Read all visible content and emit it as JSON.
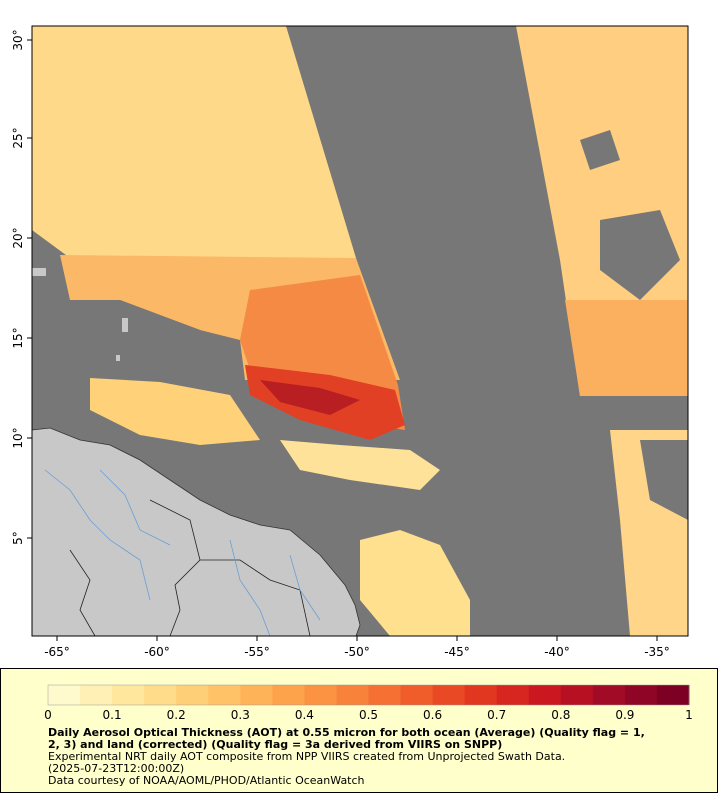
{
  "map": {
    "lon_ticks": [
      "-65°",
      "-60°",
      "-55°",
      "-50°",
      "-45°",
      "-40°",
      "-35°"
    ],
    "lat_ticks": [
      "30°",
      "25°",
      "20°",
      "15°",
      "10°",
      "5°"
    ],
    "colors": {
      "no_data": "#777777",
      "land": "#c8c8c8",
      "river": "#6a9fd4",
      "border": "#222222"
    }
  },
  "colorbar": {
    "tick_labels": [
      "0",
      "0.1",
      "0.2",
      "0.3",
      "0.4",
      "0.5",
      "0.6",
      "0.7",
      "0.8",
      "0.9",
      "1"
    ],
    "colors": [
      "#fffacd",
      "#ffe9a0",
      "#ffd27a",
      "#ffb85c",
      "#fc9a45",
      "#f77a36",
      "#ee5427",
      "#df301e",
      "#c81420",
      "#a00a25",
      "#7d0024"
    ]
  },
  "caption": {
    "title_line1": "Daily Aerosol Optical Thickness (AOT) at 0.55 micron for both ocean (Average) (Quality flag = 1,",
    "title_line2": "2, 3) and land (corrected) (Quality flag = 3a derived from VIIRS on SNPP)",
    "line3": "Experimental NRT daily AOT composite from NPP VIIRS created from Unprojected Swath Data.",
    "line4": "(2025-07-23T12:00:00Z)",
    "line5": "Data courtesy of NOAA/AOML/PHOD/Atlantic OceanWatch"
  }
}
